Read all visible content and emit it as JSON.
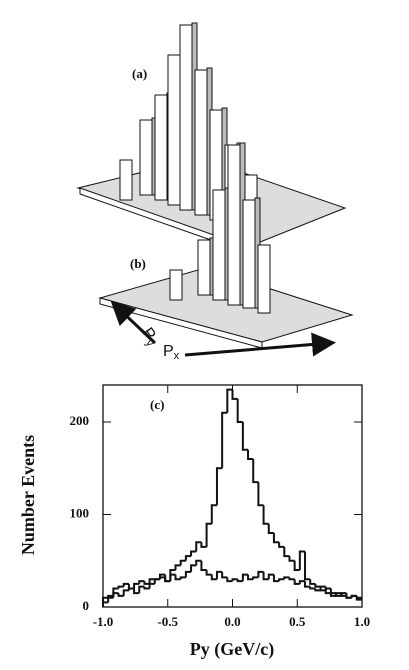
{
  "lego": {
    "labels": [
      "(a)",
      "(b)"
    ],
    "axis_x": {
      "main": "P",
      "sub": "x"
    },
    "axis_y": {
      "main": "P",
      "sub": "y"
    }
  },
  "chart_data": {
    "type": "histogram",
    "annotation": "(c)",
    "x_label": "Py  (GeV/c)",
    "y_label": "Number Events",
    "bins": [
      -1,
      -0.96,
      -0.92,
      -0.88,
      -0.84,
      -0.8,
      -0.76,
      -0.72,
      -0.68,
      -0.64,
      -0.6,
      -0.56,
      -0.52,
      -0.48,
      -0.44,
      -0.4,
      -0.36,
      -0.32,
      -0.28,
      -0.24,
      -0.2,
      -0.16,
      -0.12,
      -0.08,
      -0.04,
      0,
      0.04,
      0.08,
      0.12,
      0.16,
      0.2,
      0.24,
      0.28,
      0.32,
      0.36,
      0.4,
      0.44,
      0.48,
      0.52,
      0.56,
      0.6,
      0.64,
      0.68,
      0.72,
      0.76,
      0.8,
      0.84,
      0.88,
      0.92,
      0.96,
      1
    ],
    "series": [
      {
        "color": "#111111",
        "values": [
          5,
          10,
          15,
          12,
          18,
          20,
          15,
          22,
          20,
          25,
          30,
          35,
          28,
          40,
          45,
          50,
          55,
          60,
          70,
          65,
          90,
          110,
          150,
          210,
          235,
          225,
          200,
          170,
          160,
          135,
          110,
          90,
          80,
          70,
          65,
          55,
          50,
          40,
          60,
          30,
          25,
          22,
          18,
          20,
          15,
          12,
          15,
          10,
          12,
          8
        ]
      },
      {
        "color": "#111111",
        "values": [
          10,
          12,
          20,
          22,
          25,
          20,
          25,
          28,
          25,
          30,
          30,
          32,
          28,
          35,
          30,
          32,
          38,
          45,
          50,
          40,
          35,
          30,
          38,
          32,
          28,
          30,
          28,
          35,
          30,
          32,
          38,
          30,
          35,
          28,
          30,
          32,
          30,
          25,
          28,
          22,
          20,
          18,
          22,
          15,
          12,
          15,
          12,
          10,
          12,
          10
        ]
      }
    ],
    "xlim": [
      -1,
      1
    ],
    "ylim": [
      0,
      240
    ],
    "xticks": [
      {
        "value": -1,
        "label": "-1.0"
      },
      -0.5,
      {
        "value": 0,
        "label": "0.0"
      },
      0.5,
      {
        "value": 1,
        "label": "1.0"
      }
    ],
    "yticks": [
      0,
      100,
      200
    ]
  }
}
